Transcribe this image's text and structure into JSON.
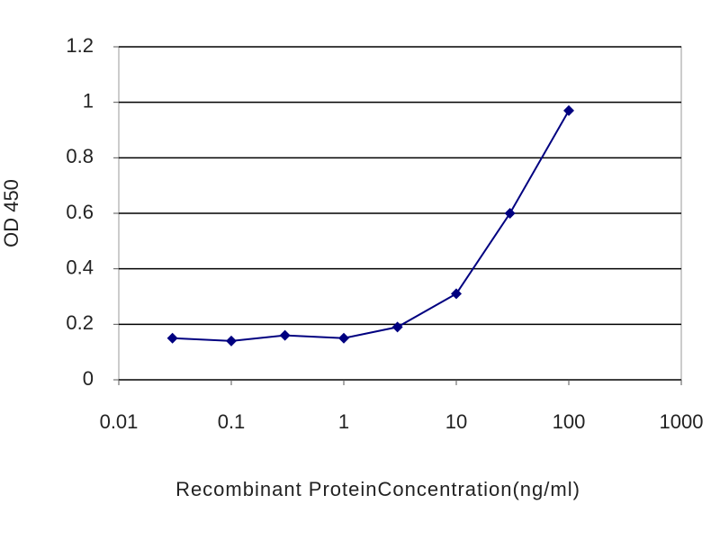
{
  "chart_data": {
    "type": "line",
    "y_label": "OD 450",
    "x_label": "Recombinant ProteinConcentration(ng/ml)",
    "x": [
      0.03,
      0.1,
      0.3,
      1,
      3,
      10,
      30,
      100
    ],
    "values": [
      0.15,
      0.14,
      0.16,
      0.15,
      0.19,
      0.31,
      0.6,
      0.97
    ],
    "color": "#000080",
    "xlog": true,
    "xlim": [
      0.01,
      1000
    ],
    "xticks": [
      0.01,
      0.1,
      1,
      10,
      100,
      1000
    ],
    "ylim": [
      0,
      1.2
    ],
    "yticks": [
      0,
      0.2,
      0.4,
      0.6,
      0.8,
      1,
      1.2
    ],
    "grid": true
  }
}
